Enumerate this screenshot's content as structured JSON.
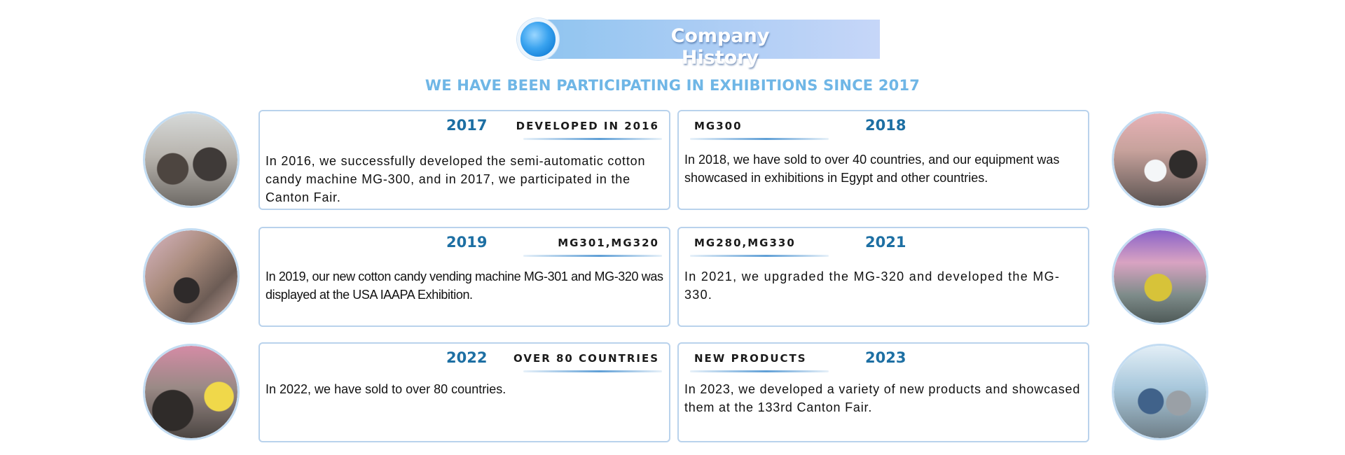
{
  "banner": {
    "title": "Company History"
  },
  "subtitle": "WE HAVE BEEN PARTICIPATING IN EXHIBITIONS SINCE 2017",
  "rows": [
    {
      "left": {
        "year": "2017",
        "tag": "DEVELOPED IN 2016",
        "text": "In 2016, we successfully developed the semi-automatic cotton candy machine MG-300, and in 2017, we participated in the Canton Fair."
      },
      "right": {
        "year": "2018",
        "tag": "MG300",
        "text": "In 2018, we have sold to over 40 countries, and our equipment was showcased in exhibitions in Egypt and other countries."
      }
    },
    {
      "left": {
        "year": "2019",
        "tag": "MG301,MG320",
        "text": "In 2019, our new cotton candy vending machine MG-301 and MG-320 was displayed at the USA IAAPA Exhibition."
      },
      "right": {
        "year": "2021",
        "tag": "MG280,MG330",
        "text": "In 2021, we upgraded the MG-320 and developed the MG-330."
      }
    },
    {
      "left": {
        "year": "2022",
        "tag": "OVER 80 COUNTRIES",
        "text": "In 2022, we have sold to over 80 countries."
      },
      "right": {
        "year": "2023",
        "tag": "NEW PRODUCTS",
        "text": "In 2023, we developed a variety of new products and showcased them at the 133rd Canton Fair."
      }
    }
  ]
}
